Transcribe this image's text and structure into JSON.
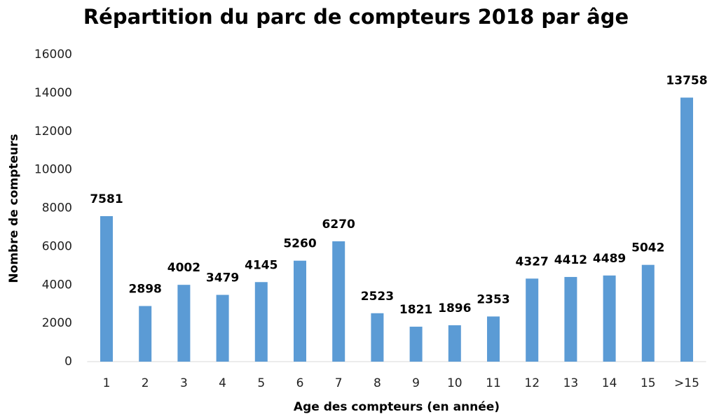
{
  "chart_data": {
    "type": "bar",
    "title": "Répartition du parc de compteurs 2018 par âge",
    "x_label": "Age des compteurs (en année)",
    "y_label": "Nombre de compteurs",
    "categories": [
      "1",
      "2",
      "3",
      "4",
      "5",
      "6",
      "7",
      "8",
      "9",
      "10",
      "11",
      "12",
      "13",
      "14",
      "15",
      ">15"
    ],
    "values": [
      7581,
      2898,
      4002,
      3479,
      4145,
      5260,
      6270,
      2523,
      1821,
      1896,
      2353,
      4327,
      4412,
      4489,
      5042,
      13758
    ],
    "color": "#5b9bd5",
    "ylim": [
      0,
      16000
    ],
    "yticks": [
      0,
      2000,
      4000,
      6000,
      8000,
      10000,
      12000,
      14000,
      16000
    ],
    "grid": false
  }
}
